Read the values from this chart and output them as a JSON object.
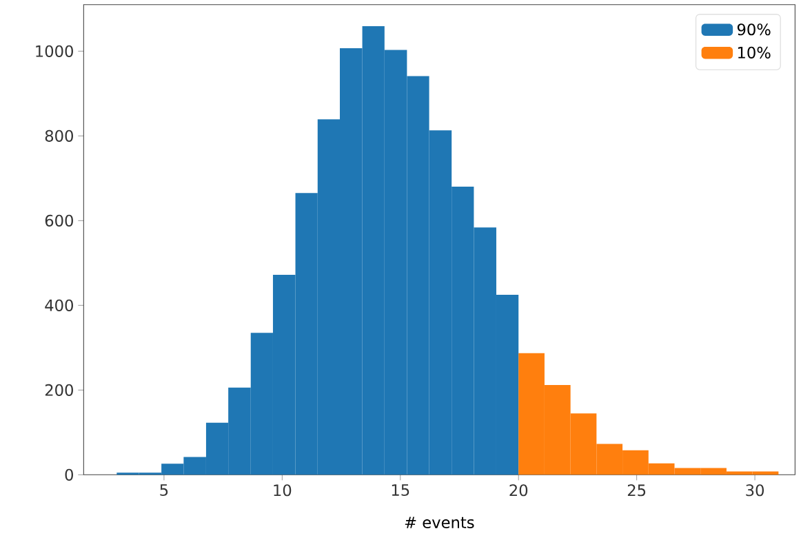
{
  "chart_data": {
    "type": "histogram",
    "xlabel": "# events",
    "bins": [
      3,
      3.94,
      4.89,
      5.83,
      6.78,
      7.72,
      8.67,
      9.61,
      10.56,
      11.5,
      12.44,
      13.39,
      14.33,
      15.28,
      16.22,
      17.17,
      18.11,
      19.06,
      20,
      21.1,
      22.2,
      23.3,
      24.4,
      25.5,
      26.6,
      27.7,
      28.8,
      29.9,
      31
    ],
    "series": [
      {
        "name": "90%",
        "color": "#1f77b4",
        "values": [
          5,
          5,
          26,
          42,
          123,
          206,
          335,
          472,
          665,
          839,
          1007,
          1059,
          1003,
          941,
          813,
          680,
          584,
          425,
          null,
          null,
          null,
          null,
          null,
          null,
          null,
          null,
          null,
          null
        ]
      },
      {
        "name": "10%",
        "color": "#ff7f0e",
        "values": [
          null,
          null,
          null,
          null,
          null,
          null,
          null,
          null,
          null,
          null,
          null,
          null,
          null,
          null,
          null,
          null,
          null,
          null,
          287,
          212,
          145,
          73,
          58,
          27,
          16,
          16,
          8,
          8
        ]
      }
    ],
    "xlim": [
      1.6,
      31.7
    ],
    "ylim": [
      0,
      1110
    ],
    "xticks": [
      5,
      10,
      15,
      20,
      25,
      30
    ],
    "yticks": [
      0,
      200,
      400,
      600,
      800,
      1000
    ],
    "legend": "top right"
  }
}
